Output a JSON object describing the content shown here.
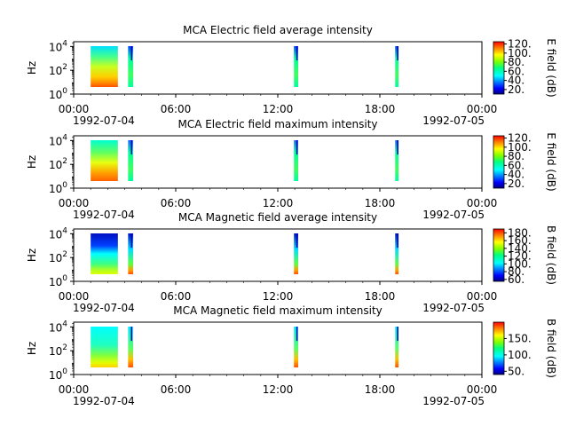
{
  "chart_data": [
    {
      "type": "heatmap",
      "title": "MCA  Electric field average intensity",
      "ylabel": "Hz",
      "yscale": "log",
      "ytick_labels": [
        "10^0",
        "10^2",
        "10^4"
      ],
      "xtick_labels": [
        "00:00",
        "06:00",
        "12:00",
        "18:00",
        "00:00"
      ],
      "xtick_hours": [
        0,
        6,
        12,
        18,
        24
      ],
      "xrange_start": "1992-07-04",
      "xrange_end": "1992-07-05",
      "colorbar_label": "E field (dB)",
      "colorbar_ticks": [
        20,
        40,
        60,
        80,
        100,
        120
      ],
      "colorbar_range": [
        10,
        125
      ],
      "palette": "electric-avg",
      "segments": [
        {
          "start_hour": 1.0,
          "end_hour": 2.6,
          "style": "e-avg-dense"
        },
        {
          "start_hour": 3.2,
          "end_hour": 3.5,
          "style": "e-avg-narrow"
        },
        {
          "start_hour": 12.95,
          "end_hour": 13.2,
          "style": "e-avg-narrow"
        },
        {
          "start_hour": 18.9,
          "end_hour": 19.1,
          "style": "e-avg-narrow"
        }
      ]
    },
    {
      "type": "heatmap",
      "title": "MCA  Electric field maximum intensity",
      "ylabel": "Hz",
      "yscale": "log",
      "ytick_labels": [
        "10^0",
        "10^2",
        "10^4"
      ],
      "xtick_labels": [
        "00:00",
        "06:00",
        "12:00",
        "18:00",
        "00:00"
      ],
      "xtick_hours": [
        0,
        6,
        12,
        18,
        24
      ],
      "xrange_start": "1992-07-04",
      "xrange_end": "1992-07-05",
      "colorbar_label": "E field (dB)",
      "colorbar_ticks": [
        20,
        40,
        60,
        80,
        100,
        120
      ],
      "colorbar_range": [
        10,
        125
      ],
      "palette": "electric-max",
      "segments": [
        {
          "start_hour": 1.0,
          "end_hour": 2.6,
          "style": "e-max-dense"
        },
        {
          "start_hour": 3.2,
          "end_hour": 3.5,
          "style": "e-max-narrow"
        },
        {
          "start_hour": 12.95,
          "end_hour": 13.2,
          "style": "e-max-narrow"
        },
        {
          "start_hour": 18.9,
          "end_hour": 19.1,
          "style": "e-max-narrow"
        }
      ]
    },
    {
      "type": "heatmap",
      "title": "MCA  Magnetic field average intensity",
      "ylabel": "Hz",
      "yscale": "log",
      "ytick_labels": [
        "10^0",
        "10^2",
        "10^4"
      ],
      "xtick_labels": [
        "00:00",
        "06:00",
        "12:00",
        "18:00",
        "00:00"
      ],
      "xtick_hours": [
        0,
        6,
        12,
        18,
        24
      ],
      "xrange_start": "1992-07-04",
      "xrange_end": "1992-07-05",
      "colorbar_label": "B field (dB)",
      "colorbar_ticks": [
        60,
        80,
        100,
        120,
        140,
        160,
        180
      ],
      "colorbar_range": [
        55,
        190
      ],
      "palette": "magnetic-avg",
      "segments": [
        {
          "start_hour": 1.0,
          "end_hour": 2.6,
          "style": "b-avg-dense"
        },
        {
          "start_hour": 3.2,
          "end_hour": 3.5,
          "style": "b-avg-narrow"
        },
        {
          "start_hour": 12.95,
          "end_hour": 13.2,
          "style": "b-avg-narrow"
        },
        {
          "start_hour": 18.9,
          "end_hour": 19.1,
          "style": "b-avg-narrow"
        }
      ]
    },
    {
      "type": "heatmap",
      "title": "MCA  Magnetic field maximum intensity",
      "ylabel": "Hz",
      "yscale": "log",
      "ytick_labels": [
        "10^0",
        "10^2",
        "10^4"
      ],
      "xtick_labels": [
        "00:00",
        "06:00",
        "12:00",
        "18:00",
        "00:00"
      ],
      "xtick_hours": [
        0,
        6,
        12,
        18,
        24
      ],
      "xrange_start": "1992-07-04",
      "xrange_end": "1992-07-05",
      "colorbar_label": "B field (dB)",
      "colorbar_ticks": [
        50,
        100,
        150
      ],
      "colorbar_range": [
        40,
        200
      ],
      "palette": "magnetic-max",
      "segments": [
        {
          "start_hour": 1.0,
          "end_hour": 2.6,
          "style": "b-max-dense"
        },
        {
          "start_hour": 3.2,
          "end_hour": 3.5,
          "style": "b-max-narrow"
        },
        {
          "start_hour": 12.95,
          "end_hour": 13.2,
          "style": "b-max-narrow"
        },
        {
          "start_hour": 18.9,
          "end_hour": 19.1,
          "style": "b-max-narrow"
        }
      ]
    }
  ]
}
